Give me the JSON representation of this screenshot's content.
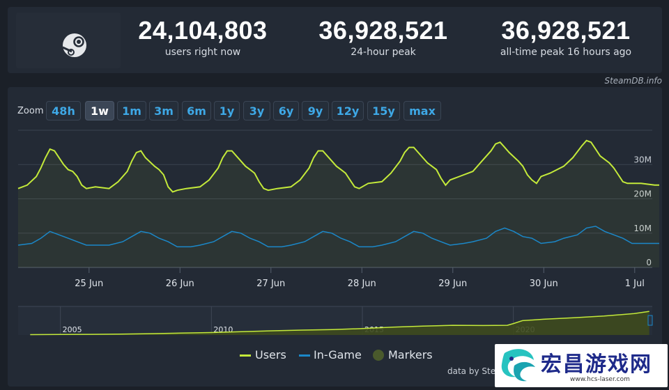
{
  "stats": [
    {
      "value": "24,104,803",
      "label": "users right now"
    },
    {
      "value": "36,928,521",
      "label": "24-hour peak"
    },
    {
      "value": "36,928,521",
      "label": "all-time peak 16 hours ago"
    }
  ],
  "source": "SteamDB.info",
  "zoom": {
    "label": "Zoom",
    "buttons": [
      "48h",
      "1w",
      "1m",
      "3m",
      "6m",
      "1y",
      "3y",
      "6y",
      "9y",
      "12y",
      "15y",
      "max"
    ],
    "active": "1w"
  },
  "legend": [
    {
      "name": "Users",
      "color": "#c4ea3a"
    },
    {
      "name": "In-Game",
      "color": "#1b88c9"
    },
    {
      "name": "Markers",
      "color": "#4a5a2c"
    }
  ],
  "credit": "data by Stea",
  "watermark": {
    "text": "宏昌游戏网",
    "url": "www.hcs-laser.com"
  },
  "colors": {
    "users": "#c4ea3a",
    "ingame": "#1b88c9",
    "button_text": "#3ea8e6"
  },
  "chart_data": [
    {
      "type": "line",
      "x_unit": "date (1 week, 24 Jun – 1 Jul)",
      "x_ticks": [
        "25 Jun",
        "26 Jun",
        "27 Jun",
        "28 Jun",
        "29 Jun",
        "30 Jun",
        "1 Jul"
      ],
      "y_ticks": [
        "0",
        "10M",
        "20M",
        "30M"
      ],
      "ylim": [
        0,
        40000000
      ],
      "grid": true,
      "series": [
        {
          "name": "Users",
          "x": [
            0.0,
            0.1,
            0.2,
            0.25,
            0.3,
            0.35,
            0.4,
            0.5,
            0.55,
            0.6,
            0.65,
            0.7,
            0.75,
            0.85,
            1.0,
            1.1,
            1.2,
            1.25,
            1.3,
            1.35,
            1.4,
            1.5,
            1.55,
            1.6,
            1.65,
            1.7,
            1.75,
            1.85,
            2.0,
            2.1,
            2.2,
            2.25,
            2.3,
            2.35,
            2.4,
            2.5,
            2.55,
            2.6,
            2.65,
            2.7,
            2.75,
            2.85,
            3.0,
            3.1,
            3.2,
            3.25,
            3.3,
            3.35,
            3.4,
            3.5,
            3.55,
            3.6,
            3.65,
            3.7,
            3.75,
            3.85,
            4.0,
            4.1,
            4.2,
            4.25,
            4.3,
            4.35,
            4.4,
            4.5,
            4.55,
            4.6,
            4.65,
            4.7,
            4.75,
            4.85,
            5.0,
            5.1,
            5.2,
            5.25,
            5.3,
            5.35,
            5.4,
            5.5,
            5.55,
            5.6,
            5.65,
            5.7,
            5.75,
            5.85,
            6.0,
            6.1,
            6.2,
            6.25,
            6.3,
            6.35,
            6.4,
            6.5,
            6.55,
            6.6,
            6.65,
            6.7,
            6.75,
            6.85,
            7.0,
            7.05
          ],
          "values": [
            23000000,
            24000000,
            26500000,
            29000000,
            32000000,
            34500000,
            34000000,
            30000000,
            28500000,
            28000000,
            26500000,
            24000000,
            23000000,
            23500000,
            23000000,
            25000000,
            28000000,
            31000000,
            33500000,
            34000000,
            32000000,
            29500000,
            28500000,
            27000000,
            23500000,
            22000000,
            22500000,
            23000000,
            23500000,
            25500000,
            29000000,
            32000000,
            34000000,
            34000000,
            32500000,
            29500000,
            28500000,
            27500000,
            25000000,
            23000000,
            22500000,
            23000000,
            23500000,
            25500000,
            29000000,
            32000000,
            34000000,
            34000000,
            32500000,
            29500000,
            28500000,
            27500000,
            25500000,
            23500000,
            23000000,
            24500000,
            25000000,
            27500000,
            31000000,
            33500000,
            35000000,
            35000000,
            33500000,
            30500000,
            29500000,
            28500000,
            26000000,
            24000000,
            25500000,
            26500000,
            28000000,
            31000000,
            34000000,
            36000000,
            36500000,
            35000000,
            33500000,
            31000000,
            29500000,
            27000000,
            25500000,
            24500000,
            26500000,
            27500000,
            29500000,
            32000000,
            35500000,
            37000000,
            36500000,
            34500000,
            32500000,
            30500000,
            29000000,
            27000000,
            25000000,
            24500000,
            24500000,
            24500000,
            24000000,
            24000000
          ]
        },
        {
          "name": "In-Game",
          "x": [
            0.0,
            0.15,
            0.25,
            0.35,
            0.45,
            0.55,
            0.65,
            0.75,
            0.9,
            1.0,
            1.15,
            1.25,
            1.35,
            1.45,
            1.55,
            1.65,
            1.75,
            1.9,
            2.0,
            2.15,
            2.25,
            2.35,
            2.45,
            2.55,
            2.65,
            2.75,
            2.9,
            3.0,
            3.15,
            3.25,
            3.35,
            3.45,
            3.55,
            3.65,
            3.75,
            3.9,
            4.0,
            4.15,
            4.25,
            4.35,
            4.45,
            4.55,
            4.65,
            4.75,
            4.9,
            5.0,
            5.15,
            5.25,
            5.35,
            5.45,
            5.55,
            5.65,
            5.75,
            5.9,
            6.0,
            6.15,
            6.25,
            6.35,
            6.45,
            6.55,
            6.65,
            6.75,
            6.9,
            7.05
          ],
          "values": [
            6500000,
            7000000,
            8500000,
            10500000,
            9500000,
            8500000,
            7500000,
            6500000,
            6500000,
            6500000,
            7500000,
            9000000,
            10500000,
            10000000,
            8500000,
            7500000,
            6000000,
            6000000,
            6500000,
            7500000,
            9000000,
            10500000,
            10000000,
            8500000,
            7500000,
            6000000,
            6000000,
            6500000,
            7500000,
            9000000,
            10500000,
            10000000,
            8500000,
            7500000,
            6000000,
            6000000,
            6500000,
            7500000,
            9000000,
            10500000,
            10000000,
            8500000,
            7500000,
            6500000,
            7000000,
            7500000,
            8500000,
            10500000,
            11500000,
            10500000,
            9000000,
            8500000,
            7000000,
            7500000,
            8500000,
            9500000,
            11500000,
            12000000,
            10500000,
            9500000,
            8500000,
            7000000,
            7000000,
            7000000
          ]
        }
      ]
    },
    {
      "type": "area",
      "x_ticks": [
        "2005",
        "2010",
        "2015",
        "2020"
      ],
      "series": [
        {
          "name": "Users",
          "x": [
            2004.0,
            2005.0,
            2006.0,
            2007.0,
            2008.0,
            2009.0,
            2010.0,
            2011.0,
            2012.0,
            2013.0,
            2014.0,
            2015.0,
            2016.0,
            2017.0,
            2018.0,
            2019.0,
            2019.8,
            2020.0,
            2020.3,
            2021.0,
            2022.0,
            2023.0,
            2024.0,
            2024.5
          ],
          "values": [
            0.5,
            0.7,
            0.9,
            1.3,
            1.8,
            2.6,
            3.4,
            4.6,
            5.8,
            6.8,
            7.6,
            9.0,
            11.0,
            12.5,
            13.5,
            13.2,
            13.5,
            16.0,
            20.0,
            22.0,
            24.0,
            26.5,
            30.0,
            33.0
          ]
        }
      ]
    }
  ]
}
